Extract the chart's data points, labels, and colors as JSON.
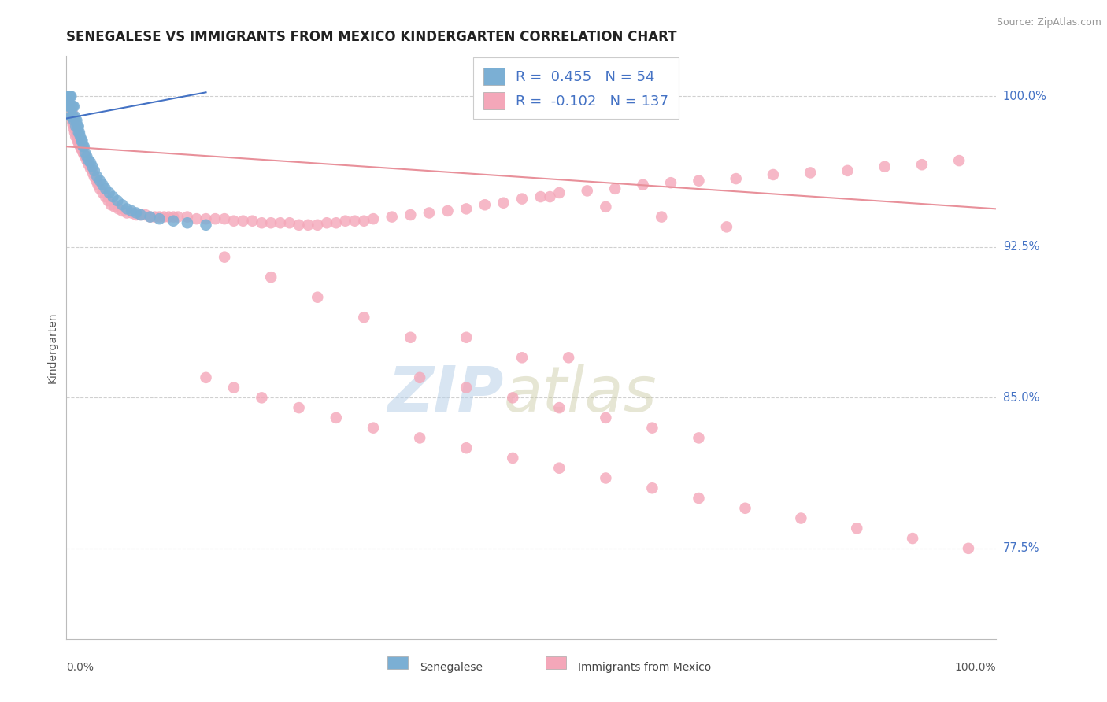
{
  "title": "SENEGALESE VS IMMIGRANTS FROM MEXICO KINDERGARTEN CORRELATION CHART",
  "source": "Source: ZipAtlas.com",
  "ylabel": "Kindergarten",
  "xlim": [
    0.0,
    1.0
  ],
  "ylim": [
    0.73,
    1.02
  ],
  "ytick_vals": [
    0.775,
    0.85,
    0.925,
    1.0
  ],
  "ytick_labels": [
    "77.5%",
    "85.0%",
    "92.5%",
    "100.0%"
  ],
  "legend_r1_val": "0.455",
  "legend_n1_val": "54",
  "legend_r2_val": "-0.102",
  "legend_n2_val": "137",
  "blue_color": "#7bafd4",
  "pink_color": "#f4a7b9",
  "blue_line_color": "#4472c4",
  "pink_line_color": "#e8909a",
  "legend_text_color": "#4472c4",
  "bg_color": "#ffffff",
  "grid_color": "#d0d0d0",
  "blue_scatter_x": [
    0.001,
    0.001,
    0.002,
    0.002,
    0.003,
    0.003,
    0.003,
    0.004,
    0.004,
    0.005,
    0.005,
    0.005,
    0.006,
    0.006,
    0.007,
    0.007,
    0.008,
    0.008,
    0.009,
    0.01,
    0.01,
    0.011,
    0.012,
    0.013,
    0.013,
    0.014,
    0.015,
    0.016,
    0.017,
    0.018,
    0.019,
    0.02,
    0.022,
    0.024,
    0.026,
    0.028,
    0.03,
    0.033,
    0.036,
    0.039,
    0.042,
    0.046,
    0.05,
    0.055,
    0.06,
    0.065,
    0.07,
    0.075,
    0.08,
    0.09,
    0.1,
    0.115,
    0.13,
    0.15
  ],
  "blue_scatter_y": [
    1.0,
    1.0,
    1.0,
    1.0,
    1.0,
    1.0,
    0.995,
    1.0,
    0.995,
    1.0,
    0.995,
    0.99,
    0.995,
    0.99,
    0.995,
    0.99,
    0.995,
    0.988,
    0.99,
    0.988,
    0.985,
    0.988,
    0.985,
    0.985,
    0.982,
    0.982,
    0.98,
    0.978,
    0.978,
    0.975,
    0.975,
    0.972,
    0.97,
    0.968,
    0.967,
    0.965,
    0.963,
    0.96,
    0.958,
    0.956,
    0.954,
    0.952,
    0.95,
    0.948,
    0.946,
    0.944,
    0.943,
    0.942,
    0.941,
    0.94,
    0.939,
    0.938,
    0.937,
    0.936
  ],
  "pink_scatter_x": [
    0.001,
    0.001,
    0.002,
    0.002,
    0.003,
    0.003,
    0.004,
    0.004,
    0.005,
    0.005,
    0.006,
    0.006,
    0.007,
    0.007,
    0.008,
    0.008,
    0.009,
    0.009,
    0.01,
    0.01,
    0.011,
    0.012,
    0.013,
    0.014,
    0.015,
    0.016,
    0.017,
    0.018,
    0.019,
    0.02,
    0.022,
    0.024,
    0.026,
    0.028,
    0.03,
    0.032,
    0.034,
    0.036,
    0.039,
    0.042,
    0.045,
    0.048,
    0.052,
    0.056,
    0.06,
    0.065,
    0.07,
    0.075,
    0.08,
    0.085,
    0.09,
    0.095,
    0.1,
    0.105,
    0.11,
    0.115,
    0.12,
    0.13,
    0.14,
    0.15,
    0.16,
    0.17,
    0.18,
    0.19,
    0.2,
    0.21,
    0.22,
    0.23,
    0.24,
    0.25,
    0.26,
    0.27,
    0.28,
    0.29,
    0.3,
    0.31,
    0.32,
    0.33,
    0.35,
    0.37,
    0.39,
    0.41,
    0.43,
    0.45,
    0.47,
    0.49,
    0.51,
    0.53,
    0.56,
    0.59,
    0.62,
    0.65,
    0.68,
    0.72,
    0.76,
    0.8,
    0.84,
    0.88,
    0.92,
    0.96,
    0.17,
    0.22,
    0.27,
    0.32,
    0.37,
    0.43,
    0.49,
    0.54,
    0.38,
    0.43,
    0.48,
    0.53,
    0.58,
    0.63,
    0.68,
    0.15,
    0.18,
    0.21,
    0.25,
    0.29,
    0.33,
    0.38,
    0.43,
    0.48,
    0.53,
    0.58,
    0.63,
    0.68,
    0.73,
    0.79,
    0.85,
    0.91,
    0.97,
    0.52,
    0.58,
    0.64,
    0.71
  ],
  "pink_scatter_y": [
    1.0,
    0.998,
    0.996,
    0.998,
    0.996,
    0.994,
    0.996,
    0.992,
    0.994,
    0.99,
    0.992,
    0.988,
    0.99,
    0.986,
    0.988,
    0.984,
    0.986,
    0.982,
    0.984,
    0.98,
    0.982,
    0.978,
    0.977,
    0.976,
    0.975,
    0.974,
    0.973,
    0.972,
    0.971,
    0.97,
    0.968,
    0.966,
    0.964,
    0.962,
    0.96,
    0.958,
    0.956,
    0.954,
    0.952,
    0.95,
    0.948,
    0.946,
    0.945,
    0.944,
    0.943,
    0.942,
    0.942,
    0.941,
    0.941,
    0.941,
    0.94,
    0.94,
    0.94,
    0.94,
    0.94,
    0.94,
    0.94,
    0.94,
    0.939,
    0.939,
    0.939,
    0.939,
    0.938,
    0.938,
    0.938,
    0.937,
    0.937,
    0.937,
    0.937,
    0.936,
    0.936,
    0.936,
    0.937,
    0.937,
    0.938,
    0.938,
    0.938,
    0.939,
    0.94,
    0.941,
    0.942,
    0.943,
    0.944,
    0.946,
    0.947,
    0.949,
    0.95,
    0.952,
    0.953,
    0.954,
    0.956,
    0.957,
    0.958,
    0.959,
    0.961,
    0.962,
    0.963,
    0.965,
    0.966,
    0.968,
    0.92,
    0.91,
    0.9,
    0.89,
    0.88,
    0.88,
    0.87,
    0.87,
    0.86,
    0.855,
    0.85,
    0.845,
    0.84,
    0.835,
    0.83,
    0.86,
    0.855,
    0.85,
    0.845,
    0.84,
    0.835,
    0.83,
    0.825,
    0.82,
    0.815,
    0.81,
    0.805,
    0.8,
    0.795,
    0.79,
    0.785,
    0.78,
    0.775,
    0.95,
    0.945,
    0.94,
    0.935
  ]
}
